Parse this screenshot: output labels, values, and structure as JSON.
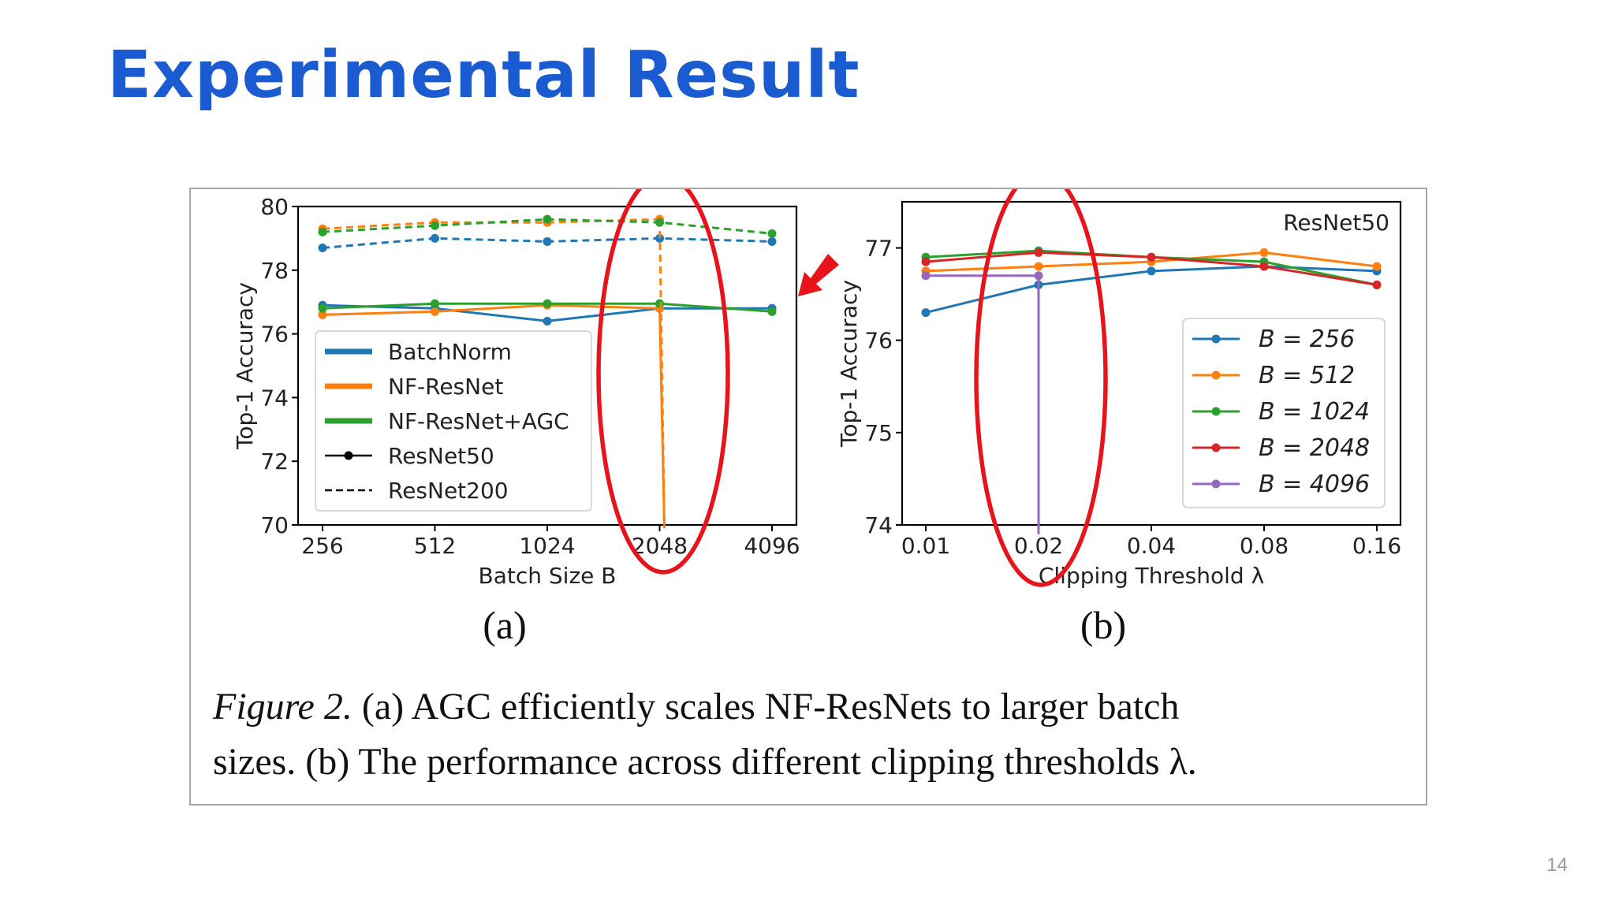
{
  "slide": {
    "title": "Experimental Result",
    "page_number": "14"
  },
  "figure": {
    "label_a": "(a)",
    "label_b": "(b)",
    "caption_italic": "Figure 2.",
    "caption_line1": " (a) AGC efficiently scales NF-ResNets to larger batch",
    "caption_line2": "sizes. (b) The performance across different clipping thresholds λ."
  },
  "annotations": {
    "highlight_color": "#e8141b"
  },
  "chart_data": [
    {
      "type": "line",
      "panel": "a",
      "xlabel": "Batch Size B",
      "ylabel": "Top-1 Accuracy",
      "categories": [
        "256",
        "512",
        "1024",
        "2048",
        "4096"
      ],
      "ylim": [
        70,
        80
      ],
      "yticks": [
        70,
        72,
        74,
        76,
        78,
        80
      ],
      "grid": false,
      "legend_position": "lower-left",
      "legend": [
        {
          "label": "BatchNorm",
          "color": "#1f77b4",
          "style": "thick"
        },
        {
          "label": "NF-ResNet",
          "color": "#ff7f0e",
          "style": "thick"
        },
        {
          "label": "NF-ResNet+AGC",
          "color": "#2ca02c",
          "style": "thick"
        },
        {
          "label": "ResNet50",
          "color": "#000000",
          "style": "solid-marker"
        },
        {
          "label": "ResNet200",
          "color": "#000000",
          "style": "dashed"
        }
      ],
      "series": [
        {
          "name": "BatchNorm ResNet50",
          "color": "#1f77b4",
          "dashed": false,
          "values": [
            76.9,
            76.8,
            76.4,
            76.8,
            76.8
          ]
        },
        {
          "name": "NF-ResNet ResNet50",
          "color": "#ff7f0e",
          "dashed": false,
          "values": [
            76.6,
            76.7,
            76.9,
            76.8,
            null
          ],
          "drop": 69.9
        },
        {
          "name": "NF-ResNet+AGC ResNet50",
          "color": "#2ca02c",
          "dashed": false,
          "values": [
            76.8,
            76.95,
            76.95,
            76.95,
            76.7
          ]
        },
        {
          "name": "BatchNorm ResNet200",
          "color": "#1f77b4",
          "dashed": true,
          "values": [
            78.7,
            79.0,
            78.9,
            79.0,
            78.9
          ]
        },
        {
          "name": "NF-ResNet ResNet200",
          "color": "#ff7f0e",
          "dashed": true,
          "values": [
            79.3,
            79.5,
            79.5,
            79.6,
            null
          ],
          "drop": 69.9
        },
        {
          "name": "NF-ResNet+AGC ResNet200",
          "color": "#2ca02c",
          "dashed": true,
          "values": [
            79.2,
            79.4,
            79.6,
            79.5,
            79.15
          ]
        }
      ]
    },
    {
      "type": "line",
      "panel": "b",
      "title": "ResNet50",
      "xlabel": "Clipping Threshold λ",
      "ylabel": "Top-1 Accuracy",
      "categories": [
        "0.01",
        "0.02",
        "0.04",
        "0.08",
        "0.16"
      ],
      "ylim": [
        74,
        77.5
      ],
      "yticks": [
        74,
        75,
        76,
        77
      ],
      "grid": false,
      "legend_position": "lower-right",
      "series": [
        {
          "name": "B = 256",
          "color": "#1f77b4",
          "values": [
            76.3,
            76.6,
            76.75,
            76.8,
            76.75
          ]
        },
        {
          "name": "B = 512",
          "color": "#ff7f0e",
          "values": [
            76.75,
            76.8,
            76.85,
            76.95,
            76.8
          ]
        },
        {
          "name": "B = 1024",
          "color": "#2ca02c",
          "values": [
            76.9,
            76.97,
            76.9,
            76.85,
            76.6
          ]
        },
        {
          "name": "B = 2048",
          "color": "#d62728",
          "values": [
            76.85,
            76.95,
            76.9,
            76.8,
            76.6
          ]
        },
        {
          "name": "B = 4096",
          "color": "#9467bd",
          "values": [
            76.7,
            76.7,
            null,
            null,
            null
          ],
          "drop": 73.9
        }
      ]
    }
  ]
}
